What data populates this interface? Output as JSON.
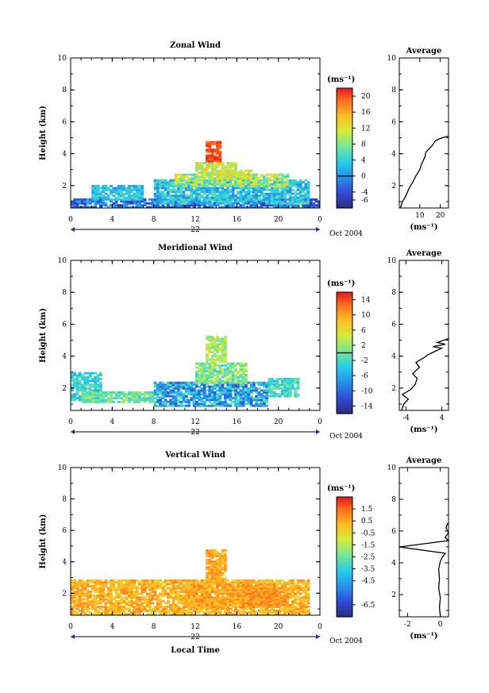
{
  "chart_data": [
    {
      "type": "heatmap",
      "title": "Zonal Wind",
      "ylabel": "Height (km)",
      "xlabel": "",
      "x_ticks": [
        "0",
        "4",
        "8",
        "12",
        "16",
        "20",
        "0"
      ],
      "y_ticks": [
        "2",
        "4",
        "6",
        "8",
        "10"
      ],
      "xlim": [
        0,
        24
      ],
      "ylim": [
        0.6,
        10
      ],
      "date_day": "22",
      "date_label": "Oct 2004",
      "colorbar": {
        "unit": "(ms⁻¹)",
        "range": [
          -8,
          22
        ],
        "tick_values": [
          -6,
          -4,
          0,
          4,
          8,
          12,
          16,
          20
        ],
        "tick_labels": [
          "-6",
          "-4",
          "0",
          "4",
          "8",
          "12",
          "16",
          "20"
        ],
        "zero_line": 0
      },
      "profile": {
        "title": "Average",
        "xlabel": "(ms⁻¹)",
        "x_ticks": [
          "10",
          "20"
        ],
        "x_tick_values": [
          10,
          20
        ],
        "xlim": [
          0,
          24
        ],
        "y_ticks": [
          "2",
          "4",
          "6",
          "8",
          "10"
        ],
        "points": [
          [
            0.5,
            0.6
          ],
          [
            1.5,
            1.0
          ],
          [
            3,
            1.3
          ],
          [
            4,
            1.6
          ],
          [
            5,
            1.9
          ],
          [
            6.5,
            2.2
          ],
          [
            8,
            2.6
          ],
          [
            10,
            3.0
          ],
          [
            11,
            3.4
          ],
          [
            12.5,
            3.8
          ],
          [
            13,
            4.1
          ],
          [
            14.5,
            4.3
          ],
          [
            16,
            4.5
          ],
          [
            17.5,
            4.8
          ],
          [
            19,
            4.9
          ],
          [
            21,
            5.0
          ],
          [
            22.5,
            5.05
          ],
          [
            24,
            5.1
          ]
        ]
      }
    },
    {
      "type": "heatmap",
      "title": "Meridional Wind",
      "ylabel": "Height (km)",
      "xlabel": "",
      "x_ticks": [
        "0",
        "4",
        "8",
        "12",
        "16",
        "20",
        "0"
      ],
      "y_ticks": [
        "2",
        "4",
        "6",
        "8",
        "10"
      ],
      "xlim": [
        0,
        24
      ],
      "ylim": [
        0.6,
        10
      ],
      "date_day": "22",
      "date_label": "Oct 2004",
      "colorbar": {
        "unit": "(ms⁻¹)",
        "range": [
          -16,
          16
        ],
        "tick_values": [
          -14,
          -10,
          -6,
          -2,
          2,
          6,
          10,
          14
        ],
        "tick_labels": [
          "-14",
          "-10",
          "-6",
          "-2",
          "2",
          "6",
          "10",
          "14"
        ],
        "zero_line": 0
      },
      "profile": {
        "title": "Average",
        "xlabel": "(ms⁻¹)",
        "x_ticks": [
          "-4",
          "4"
        ],
        "x_tick_values": [
          -4,
          4
        ],
        "xlim": [
          -5.5,
          5.5
        ],
        "y_ticks": [
          "2",
          "4",
          "6",
          "8",
          "10"
        ],
        "points": [
          [
            -5,
            0.6
          ],
          [
            -4.5,
            1.0
          ],
          [
            -3.5,
            1.3
          ],
          [
            -4.8,
            1.6
          ],
          [
            -3,
            1.9
          ],
          [
            -2,
            2.2
          ],
          [
            -1.5,
            2.6
          ],
          [
            -2.5,
            2.9
          ],
          [
            -1,
            3.3
          ],
          [
            -1.8,
            3.6
          ],
          [
            0,
            3.9
          ],
          [
            1,
            4.1
          ],
          [
            2.5,
            4.3
          ],
          [
            4,
            4.5
          ],
          [
            2,
            4.6
          ],
          [
            4.8,
            4.75
          ],
          [
            3,
            4.85
          ],
          [
            4.5,
            5.0
          ],
          [
            5.5,
            5.1
          ]
        ]
      }
    },
    {
      "type": "heatmap",
      "title": "Vertical Wind",
      "ylabel": "Height (km)",
      "xlabel": "Local Time",
      "x_ticks": [
        "0",
        "4",
        "8",
        "12",
        "16",
        "20",
        "0"
      ],
      "y_ticks": [
        "2",
        "4",
        "6",
        "8",
        "10"
      ],
      "xlim": [
        0,
        24
      ],
      "ylim": [
        0.6,
        10
      ],
      "date_day": "22",
      "date_label": "Oct 2004",
      "colorbar": {
        "unit": "(ms⁻¹)",
        "range": [
          -7.5,
          2.5
        ],
        "tick_values": [
          -6.5,
          -4.5,
          -3.5,
          -2.5,
          -1.5,
          -0.5,
          0.5,
          1.5
        ],
        "tick_labels": [
          "-6.5",
          "-4.5",
          "-3.5",
          "-2.5",
          "-1.5",
          "-0.5",
          "0.5",
          "1.5"
        ],
        "zero_line": null
      },
      "profile": {
        "title": "Average",
        "xlabel": "(ms⁻¹)",
        "x_ticks": [
          "-2",
          "0"
        ],
        "x_tick_values": [
          -2,
          0
        ],
        "xlim": [
          -2.5,
          0.5
        ],
        "y_ticks": [
          "2",
          "4",
          "6",
          "8",
          "10"
        ],
        "points": [
          [
            0.0,
            0.6
          ],
          [
            -0.05,
            1.2
          ],
          [
            0.0,
            1.8
          ],
          [
            -0.1,
            2.4
          ],
          [
            -0.05,
            3.0
          ],
          [
            -0.1,
            3.6
          ],
          [
            0.0,
            4.1
          ],
          [
            0.15,
            4.4
          ],
          [
            0.3,
            4.6
          ],
          [
            -2.5,
            5.0
          ],
          [
            0.5,
            5.4
          ],
          [
            0.3,
            5.6
          ],
          [
            0.5,
            5.9
          ],
          [
            0.35,
            6.2
          ],
          [
            0.45,
            6.5
          ]
        ]
      }
    }
  ]
}
